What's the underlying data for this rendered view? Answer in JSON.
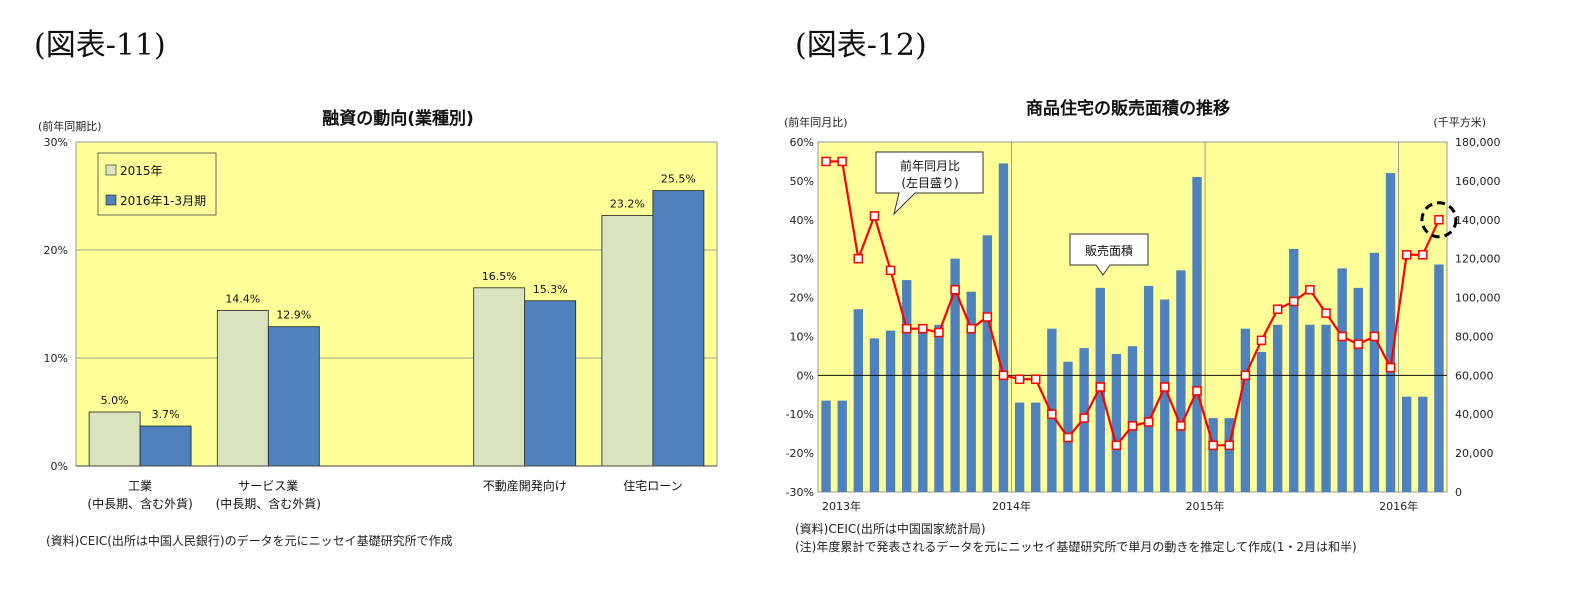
{
  "figures": {
    "left_label": "(図表-11)",
    "right_label": "(図表-12)"
  },
  "chart_data": [
    {
      "type": "bar",
      "title": "融資の動向(業種別)",
      "ylabel": "(前年同期比)",
      "ylim": [
        0,
        30
      ],
      "yticks": [
        "0%",
        "10%",
        "20%",
        "30%"
      ],
      "categories": [
        {
          "line1": "工業",
          "line2": "(中長期、含む外貨)"
        },
        {
          "line1": "サービス業",
          "line2": "(中長期、含む外貨)"
        },
        {
          "line1": "",
          "line2": ""
        },
        {
          "line1": "不動産開発向け",
          "line2": ""
        },
        {
          "line1": "住宅ローン",
          "line2": ""
        }
      ],
      "series": [
        {
          "name": "2015年",
          "color": "#d7e4bd",
          "values": [
            5.0,
            14.4,
            null,
            16.5,
            23.2
          ],
          "labels": [
            "5.0%",
            "14.4%",
            "",
            "16.5%",
            "23.2%"
          ]
        },
        {
          "name": "2016年1-3月期",
          "color": "#4f81bd",
          "values": [
            3.7,
            12.9,
            null,
            15.3,
            25.5
          ],
          "labels": [
            "3.7%",
            "12.9%",
            "",
            "15.3%",
            "25.5%"
          ]
        }
      ],
      "grid": true,
      "legend": "top-left",
      "background": "#ffff99",
      "source": "(資料)CEIC(出所は中国人民銀行)のデータを元にニッセイ基礎研究所で作成"
    },
    {
      "type": "bar+line",
      "title": "商品住宅の販売面積の推移",
      "ylabel_left": "(前年同月比)",
      "ylabel_right": "(千平方米)",
      "ylim_left": [
        -30,
        60
      ],
      "ylim_right": [
        0,
        180000
      ],
      "yticks_left": [
        "-30%",
        "-20%",
        "-10%",
        "0%",
        "10%",
        "20%",
        "30%",
        "40%",
        "50%",
        "60%"
      ],
      "yticks_right": [
        "0",
        "20,000",
        "40,000",
        "60,000",
        "80,000",
        "100,000",
        "120,000",
        "140,000",
        "160,000",
        "180,000"
      ],
      "x_labels": [
        "2013年",
        "2014年",
        "2015年",
        "2016年"
      ],
      "x_label_months": [
        0,
        12,
        24,
        36
      ],
      "months": 39,
      "bar_series": {
        "name": "販売面積",
        "color": "#4f81bd",
        "values": [
          47000,
          47000,
          94000,
          79000,
          83000,
          109000,
          84000,
          86000,
          120000,
          103000,
          132000,
          169000,
          46000,
          46000,
          84000,
          67000,
          74000,
          105000,
          71000,
          75000,
          106000,
          99000,
          114000,
          162000,
          38000,
          38000,
          84000,
          72000,
          86000,
          125000,
          86000,
          86000,
          115000,
          105000,
          123000,
          164000,
          49000,
          49000,
          117000
        ]
      },
      "line_series": {
        "name": "前年同月比",
        "color": "#ff0000",
        "values": [
          55,
          55,
          30,
          41,
          27,
          12,
          12,
          11,
          22,
          12,
          15,
          0,
          -1,
          -1,
          -10,
          -16,
          -11,
          -3,
          -18,
          -13,
          -12,
          -3,
          -13,
          -4,
          -18,
          -18,
          0,
          9,
          17,
          19,
          22,
          16,
          10,
          8,
          10,
          2,
          31,
          31,
          40
        ]
      },
      "callouts": {
        "line": [
          "前年同月比",
          "(左目盛り)"
        ],
        "bar": "販売面積"
      },
      "background": "#ffff99",
      "source": "(資料)CEIC(出所は中国国家統計局)",
      "note": "(注)年度累計で発表されるデータを元にニッセイ基礎研究所で単月の動きを推定して作成(1・2月は和半)"
    }
  ]
}
